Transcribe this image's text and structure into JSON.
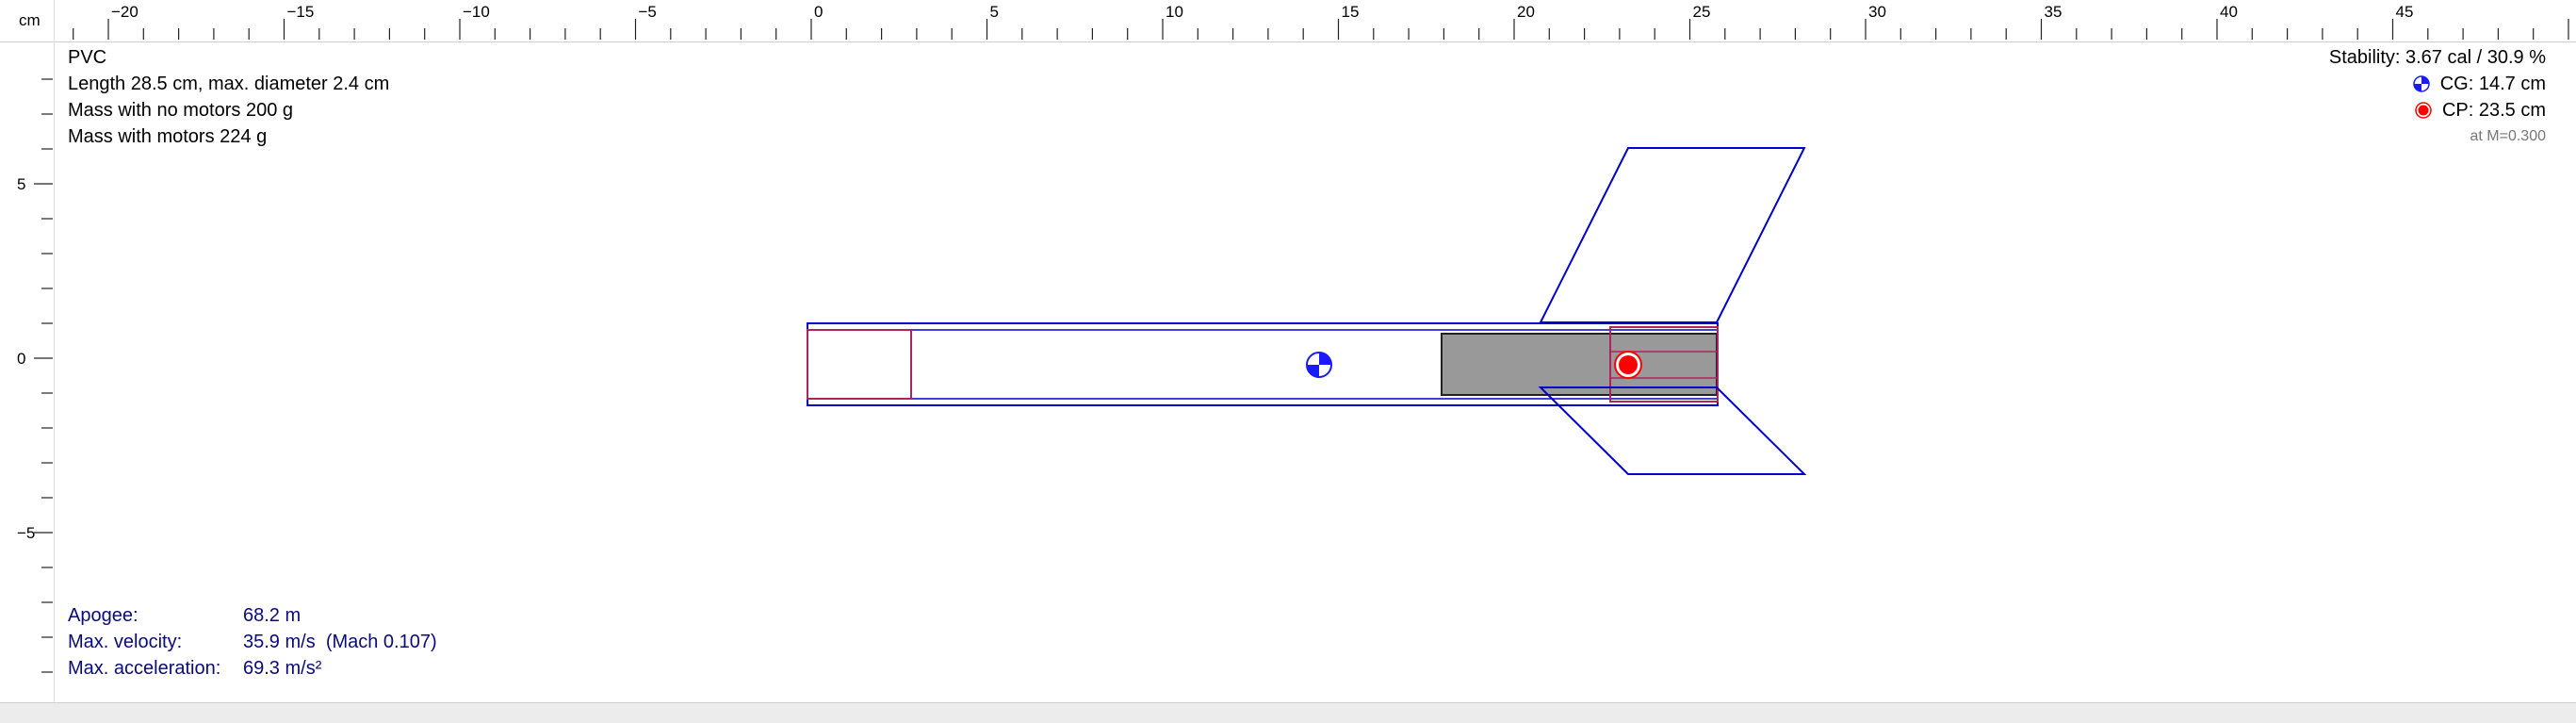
{
  "ruler": {
    "unit": "cm",
    "top_labels": [
      "−20",
      "−15",
      "−10",
      "−5",
      "0",
      "5",
      "10",
      "15",
      "20",
      "25",
      "30",
      "35",
      "40",
      "45"
    ],
    "left_labels": [
      "5",
      "0",
      "−5"
    ]
  },
  "rocket_info": {
    "name": "PVC",
    "length_line": "Length 28.5 cm, max. diameter 2.4 cm",
    "mass_no_motors": "Mass with no motors 200 g",
    "mass_with_motors": "Mass with motors 224 g"
  },
  "stability": {
    "stability_line": "Stability: 3.67 cal / 30.9 %",
    "cg": "CG: 14.7 cm",
    "cp": "CP: 23.5 cm",
    "mach": "at M=0.300",
    "cg_color": "#1a1aff",
    "cp_color": "#ff0000"
  },
  "flight": {
    "apogee_label": "Apogee:",
    "apogee_value": "68.2 m",
    "velocity_label": "Max. velocity:",
    "velocity_value": "35.9 m/s  (Mach 0.107)",
    "accel_label": "Max. acceleration:",
    "accel_value": "69.3 m/s²"
  },
  "colors": {
    "body_outline": "#0000cc",
    "inner_component": "#b0245e",
    "motor_fill": "#999999",
    "flight_text": "#0a0a7a"
  }
}
